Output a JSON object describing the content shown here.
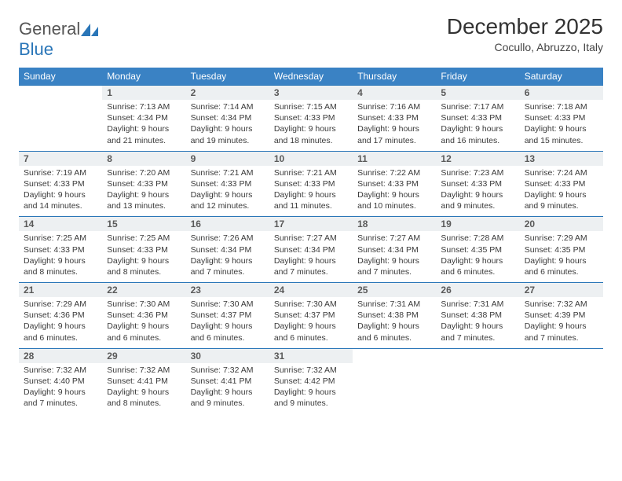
{
  "brand": {
    "part1": "General",
    "part2": "Blue"
  },
  "title": "December 2025",
  "subtitle": "Cocullo, Abruzzo, Italy",
  "colors": {
    "header_bg": "#3a82c4",
    "daynum_bg": "#edf0f2",
    "rule": "#2a76b8",
    "text": "#3a3a3a"
  },
  "typography": {
    "title_fontsize": 28,
    "subtitle_fontsize": 14,
    "header_fontsize": 12,
    "daynum_fontsize": 12,
    "cell_fontsize": 10.5
  },
  "weekdays": [
    "Sunday",
    "Monday",
    "Tuesday",
    "Wednesday",
    "Thursday",
    "Friday",
    "Saturday"
  ],
  "weeks": [
    [
      null,
      {
        "n": "1",
        "sr": "Sunrise: 7:13 AM",
        "ss": "Sunset: 4:34 PM",
        "d1": "Daylight: 9 hours",
        "d2": "and 21 minutes."
      },
      {
        "n": "2",
        "sr": "Sunrise: 7:14 AM",
        "ss": "Sunset: 4:34 PM",
        "d1": "Daylight: 9 hours",
        "d2": "and 19 minutes."
      },
      {
        "n": "3",
        "sr": "Sunrise: 7:15 AM",
        "ss": "Sunset: 4:33 PM",
        "d1": "Daylight: 9 hours",
        "d2": "and 18 minutes."
      },
      {
        "n": "4",
        "sr": "Sunrise: 7:16 AM",
        "ss": "Sunset: 4:33 PM",
        "d1": "Daylight: 9 hours",
        "d2": "and 17 minutes."
      },
      {
        "n": "5",
        "sr": "Sunrise: 7:17 AM",
        "ss": "Sunset: 4:33 PM",
        "d1": "Daylight: 9 hours",
        "d2": "and 16 minutes."
      },
      {
        "n": "6",
        "sr": "Sunrise: 7:18 AM",
        "ss": "Sunset: 4:33 PM",
        "d1": "Daylight: 9 hours",
        "d2": "and 15 minutes."
      }
    ],
    [
      {
        "n": "7",
        "sr": "Sunrise: 7:19 AM",
        "ss": "Sunset: 4:33 PM",
        "d1": "Daylight: 9 hours",
        "d2": "and 14 minutes."
      },
      {
        "n": "8",
        "sr": "Sunrise: 7:20 AM",
        "ss": "Sunset: 4:33 PM",
        "d1": "Daylight: 9 hours",
        "d2": "and 13 minutes."
      },
      {
        "n": "9",
        "sr": "Sunrise: 7:21 AM",
        "ss": "Sunset: 4:33 PM",
        "d1": "Daylight: 9 hours",
        "d2": "and 12 minutes."
      },
      {
        "n": "10",
        "sr": "Sunrise: 7:21 AM",
        "ss": "Sunset: 4:33 PM",
        "d1": "Daylight: 9 hours",
        "d2": "and 11 minutes."
      },
      {
        "n": "11",
        "sr": "Sunrise: 7:22 AM",
        "ss": "Sunset: 4:33 PM",
        "d1": "Daylight: 9 hours",
        "d2": "and 10 minutes."
      },
      {
        "n": "12",
        "sr": "Sunrise: 7:23 AM",
        "ss": "Sunset: 4:33 PM",
        "d1": "Daylight: 9 hours",
        "d2": "and 9 minutes."
      },
      {
        "n": "13",
        "sr": "Sunrise: 7:24 AM",
        "ss": "Sunset: 4:33 PM",
        "d1": "Daylight: 9 hours",
        "d2": "and 9 minutes."
      }
    ],
    [
      {
        "n": "14",
        "sr": "Sunrise: 7:25 AM",
        "ss": "Sunset: 4:33 PM",
        "d1": "Daylight: 9 hours",
        "d2": "and 8 minutes."
      },
      {
        "n": "15",
        "sr": "Sunrise: 7:25 AM",
        "ss": "Sunset: 4:33 PM",
        "d1": "Daylight: 9 hours",
        "d2": "and 8 minutes."
      },
      {
        "n": "16",
        "sr": "Sunrise: 7:26 AM",
        "ss": "Sunset: 4:34 PM",
        "d1": "Daylight: 9 hours",
        "d2": "and 7 minutes."
      },
      {
        "n": "17",
        "sr": "Sunrise: 7:27 AM",
        "ss": "Sunset: 4:34 PM",
        "d1": "Daylight: 9 hours",
        "d2": "and 7 minutes."
      },
      {
        "n": "18",
        "sr": "Sunrise: 7:27 AM",
        "ss": "Sunset: 4:34 PM",
        "d1": "Daylight: 9 hours",
        "d2": "and 7 minutes."
      },
      {
        "n": "19",
        "sr": "Sunrise: 7:28 AM",
        "ss": "Sunset: 4:35 PM",
        "d1": "Daylight: 9 hours",
        "d2": "and 6 minutes."
      },
      {
        "n": "20",
        "sr": "Sunrise: 7:29 AM",
        "ss": "Sunset: 4:35 PM",
        "d1": "Daylight: 9 hours",
        "d2": "and 6 minutes."
      }
    ],
    [
      {
        "n": "21",
        "sr": "Sunrise: 7:29 AM",
        "ss": "Sunset: 4:36 PM",
        "d1": "Daylight: 9 hours",
        "d2": "and 6 minutes."
      },
      {
        "n": "22",
        "sr": "Sunrise: 7:30 AM",
        "ss": "Sunset: 4:36 PM",
        "d1": "Daylight: 9 hours",
        "d2": "and 6 minutes."
      },
      {
        "n": "23",
        "sr": "Sunrise: 7:30 AM",
        "ss": "Sunset: 4:37 PM",
        "d1": "Daylight: 9 hours",
        "d2": "and 6 minutes."
      },
      {
        "n": "24",
        "sr": "Sunrise: 7:30 AM",
        "ss": "Sunset: 4:37 PM",
        "d1": "Daylight: 9 hours",
        "d2": "and 6 minutes."
      },
      {
        "n": "25",
        "sr": "Sunrise: 7:31 AM",
        "ss": "Sunset: 4:38 PM",
        "d1": "Daylight: 9 hours",
        "d2": "and 6 minutes."
      },
      {
        "n": "26",
        "sr": "Sunrise: 7:31 AM",
        "ss": "Sunset: 4:38 PM",
        "d1": "Daylight: 9 hours",
        "d2": "and 7 minutes."
      },
      {
        "n": "27",
        "sr": "Sunrise: 7:32 AM",
        "ss": "Sunset: 4:39 PM",
        "d1": "Daylight: 9 hours",
        "d2": "and 7 minutes."
      }
    ],
    [
      {
        "n": "28",
        "sr": "Sunrise: 7:32 AM",
        "ss": "Sunset: 4:40 PM",
        "d1": "Daylight: 9 hours",
        "d2": "and 7 minutes."
      },
      {
        "n": "29",
        "sr": "Sunrise: 7:32 AM",
        "ss": "Sunset: 4:41 PM",
        "d1": "Daylight: 9 hours",
        "d2": "and 8 minutes."
      },
      {
        "n": "30",
        "sr": "Sunrise: 7:32 AM",
        "ss": "Sunset: 4:41 PM",
        "d1": "Daylight: 9 hours",
        "d2": "and 9 minutes."
      },
      {
        "n": "31",
        "sr": "Sunrise: 7:32 AM",
        "ss": "Sunset: 4:42 PM",
        "d1": "Daylight: 9 hours",
        "d2": "and 9 minutes."
      },
      null,
      null,
      null
    ]
  ]
}
